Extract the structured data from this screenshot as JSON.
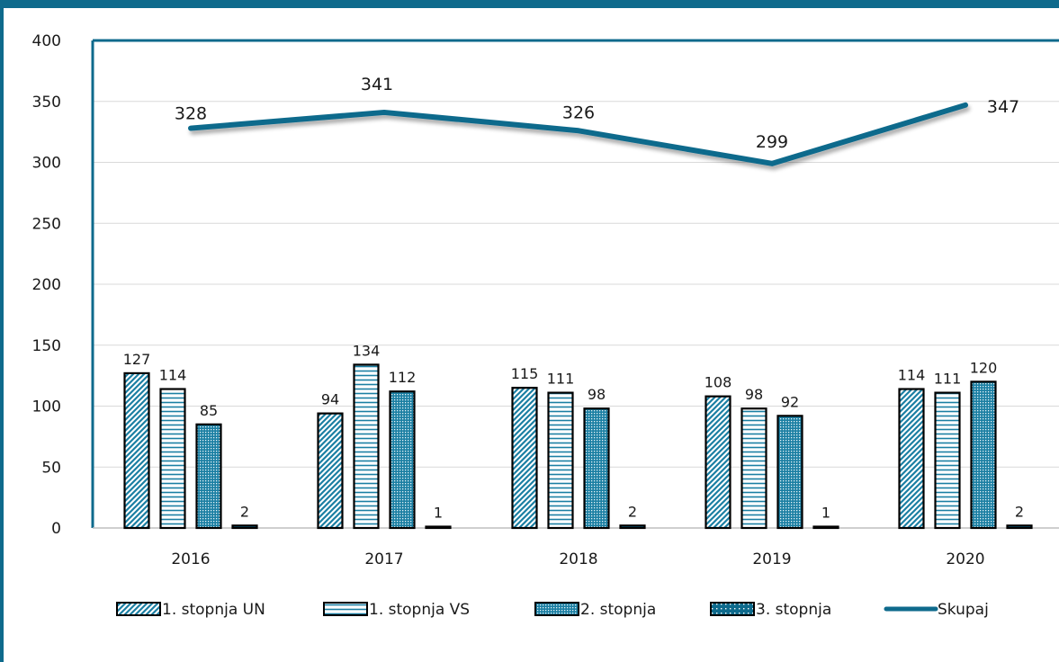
{
  "colors": {
    "accent": "#0e6a8c",
    "bar_fill": "#1b7fa3",
    "bar_light": "#ffffff",
    "bar_edge": "#000000",
    "grid": "#d9d9d9"
  },
  "chart_data": {
    "type": "bar",
    "categories": [
      "2016",
      "2017",
      "2018",
      "2019",
      "2020"
    ],
    "ylim": [
      0,
      400
    ],
    "yticks": [
      "0",
      "50",
      "100",
      "150",
      "200",
      "250",
      "300",
      "350",
      "400"
    ],
    "grid": true,
    "legend_position": "bottom",
    "series": [
      {
        "name": "1. stopnja UN",
        "type": "bar",
        "pattern": "diagonal",
        "values": [
          127,
          94,
          115,
          108,
          114
        ]
      },
      {
        "name": "1. stopnja VS",
        "type": "bar",
        "pattern": "horizontal",
        "values": [
          114,
          134,
          111,
          98,
          111
        ]
      },
      {
        "name": "2. stopnja",
        "type": "bar",
        "pattern": "dots-dense",
        "values": [
          85,
          112,
          98,
          92,
          120
        ]
      },
      {
        "name": "3. stopnja",
        "type": "bar",
        "pattern": "dots-sparse",
        "values": [
          2,
          1,
          2,
          1,
          2
        ]
      },
      {
        "name": "Skupaj",
        "type": "line",
        "values": [
          328,
          341,
          326,
          299,
          347
        ]
      }
    ]
  }
}
